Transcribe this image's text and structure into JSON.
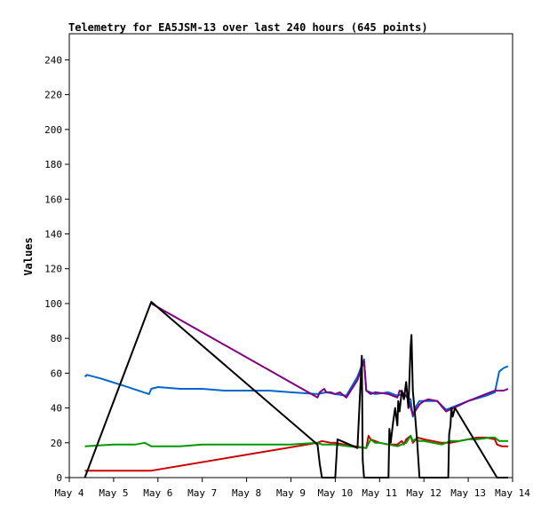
{
  "chart_data": {
    "type": "line",
    "title": "Telemetry for EA5JSM-13 over last 240 hours (645 points)",
    "ylabel": "Values",
    "xlabel": "",
    "xlim": [
      0,
      10
    ],
    "ylim": [
      0,
      255
    ],
    "x_ticks": [
      {
        "x": 0,
        "label": "May 4"
      },
      {
        "x": 1,
        "label": "May 5"
      },
      {
        "x": 2,
        "label": "May 6"
      },
      {
        "x": 3,
        "label": "May 7"
      },
      {
        "x": 4,
        "label": "May 8"
      },
      {
        "x": 5,
        "label": "May 9"
      },
      {
        "x": 6,
        "label": "May 10"
      },
      {
        "x": 7,
        "label": "May 11"
      },
      {
        "x": 8,
        "label": "May 12"
      },
      {
        "x": 9,
        "label": "May 13"
      },
      {
        "x": 10,
        "label": "May 14"
      }
    ],
    "y_ticks": [
      0,
      20,
      40,
      60,
      80,
      100,
      120,
      140,
      160,
      180,
      200,
      220,
      240
    ],
    "grid": false,
    "legend": "none",
    "series": [
      {
        "color": "#0066cc",
        "points": [
          [
            0.35,
            58
          ],
          [
            0.4,
            59
          ],
          [
            0.7,
            57
          ],
          [
            1.2,
            53
          ],
          [
            1.8,
            48
          ],
          [
            1.85,
            51
          ],
          [
            2.0,
            52
          ],
          [
            2.5,
            51
          ],
          [
            3.0,
            51
          ],
          [
            3.5,
            50
          ],
          [
            4.0,
            50
          ],
          [
            4.5,
            50
          ],
          [
            5.0,
            49
          ],
          [
            5.6,
            48
          ],
          [
            5.8,
            49
          ],
          [
            6.0,
            48
          ],
          [
            6.25,
            47
          ],
          [
            6.5,
            58
          ],
          [
            6.65,
            68
          ],
          [
            6.7,
            50
          ],
          [
            6.9,
            48
          ],
          [
            7.2,
            49
          ],
          [
            7.4,
            47
          ],
          [
            7.5,
            48
          ],
          [
            7.7,
            45
          ],
          [
            7.75,
            35
          ],
          [
            7.8,
            40
          ],
          [
            7.9,
            44
          ],
          [
            8.1,
            44
          ],
          [
            8.3,
            44
          ],
          [
            8.5,
            39
          ],
          [
            9.0,
            44
          ],
          [
            9.4,
            47
          ],
          [
            9.6,
            49
          ],
          [
            9.65,
            55
          ],
          [
            9.7,
            61
          ],
          [
            9.8,
            63
          ],
          [
            9.9,
            64
          ]
        ]
      },
      {
        "color": "#800080",
        "points": [
          [
            1.85,
            100
          ],
          [
            5.6,
            46
          ],
          [
            5.65,
            49
          ],
          [
            5.75,
            51
          ],
          [
            5.8,
            49
          ],
          [
            5.9,
            49
          ],
          [
            6.0,
            48
          ],
          [
            6.1,
            49
          ],
          [
            6.25,
            46
          ],
          [
            6.5,
            56
          ],
          [
            6.65,
            67
          ],
          [
            6.7,
            50
          ],
          [
            6.8,
            48
          ],
          [
            6.9,
            49
          ],
          [
            7.2,
            48
          ],
          [
            7.4,
            46
          ],
          [
            7.45,
            50
          ],
          [
            7.6,
            47
          ],
          [
            7.65,
            45
          ],
          [
            7.75,
            36
          ],
          [
            7.8,
            38
          ],
          [
            7.85,
            40
          ],
          [
            7.9,
            42
          ],
          [
            8.0,
            44
          ],
          [
            8.1,
            45
          ],
          [
            8.3,
            44
          ],
          [
            8.4,
            41
          ],
          [
            8.5,
            38
          ],
          [
            9.0,
            44
          ],
          [
            9.5,
            49
          ],
          [
            9.6,
            50
          ],
          [
            9.8,
            50
          ],
          [
            9.9,
            51
          ]
        ]
      },
      {
        "color": "#cc0000",
        "points": [
          [
            0.35,
            4
          ],
          [
            1.85,
            4
          ],
          [
            5.6,
            20
          ],
          [
            5.7,
            21
          ],
          [
            5.9,
            20
          ],
          [
            6.0,
            20
          ],
          [
            6.2,
            19
          ],
          [
            6.7,
            17
          ],
          [
            6.75,
            24
          ],
          [
            6.8,
            22
          ],
          [
            6.9,
            21
          ],
          [
            7.0,
            20
          ],
          [
            7.2,
            19
          ],
          [
            7.4,
            19
          ],
          [
            7.5,
            21
          ],
          [
            7.55,
            19
          ],
          [
            7.6,
            22
          ],
          [
            7.7,
            24
          ],
          [
            7.75,
            20
          ],
          [
            7.85,
            23
          ],
          [
            8.0,
            22
          ],
          [
            8.2,
            21
          ],
          [
            8.4,
            20
          ],
          [
            8.6,
            20
          ],
          [
            8.8,
            21
          ],
          [
            9.0,
            22
          ],
          [
            9.2,
            23
          ],
          [
            9.4,
            23
          ],
          [
            9.6,
            22
          ],
          [
            9.65,
            19
          ],
          [
            9.75,
            18
          ],
          [
            9.9,
            18
          ]
        ]
      },
      {
        "color": "#009900",
        "points": [
          [
            0.35,
            18
          ],
          [
            1.0,
            19
          ],
          [
            1.5,
            19
          ],
          [
            1.7,
            20
          ],
          [
            1.85,
            18
          ],
          [
            2.5,
            18
          ],
          [
            3.0,
            19
          ],
          [
            4.0,
            19
          ],
          [
            5.0,
            19
          ],
          [
            5.6,
            20
          ],
          [
            5.7,
            19
          ],
          [
            5.8,
            19
          ],
          [
            6.0,
            19
          ],
          [
            6.3,
            18
          ],
          [
            6.7,
            17
          ],
          [
            6.8,
            22
          ],
          [
            6.9,
            20
          ],
          [
            7.0,
            20
          ],
          [
            7.2,
            19
          ],
          [
            7.4,
            18
          ],
          [
            7.6,
            20
          ],
          [
            7.7,
            24
          ],
          [
            7.75,
            21
          ],
          [
            7.8,
            22
          ],
          [
            7.9,
            21
          ],
          [
            8.0,
            21
          ],
          [
            8.2,
            20
          ],
          [
            8.4,
            19
          ],
          [
            8.6,
            21
          ],
          [
            8.8,
            21
          ],
          [
            9.0,
            22
          ],
          [
            9.2,
            22
          ],
          [
            9.5,
            23
          ],
          [
            9.6,
            23
          ],
          [
            9.7,
            21
          ],
          [
            9.9,
            21
          ]
        ]
      },
      {
        "color": "#000000",
        "points": [
          [
            0.35,
            0
          ],
          [
            1.85,
            101
          ],
          [
            5.6,
            19
          ],
          [
            5.65,
            8
          ],
          [
            5.7,
            0
          ],
          [
            6.0,
            0
          ],
          [
            6.05,
            22
          ],
          [
            6.5,
            17
          ],
          [
            6.6,
            70
          ],
          [
            6.62,
            10
          ],
          [
            6.65,
            0
          ],
          [
            6.7,
            0
          ],
          [
            7.2,
            0
          ],
          [
            7.22,
            28
          ],
          [
            7.25,
            20
          ],
          [
            7.3,
            31
          ],
          [
            7.35,
            40
          ],
          [
            7.4,
            30
          ],
          [
            7.42,
            44
          ],
          [
            7.45,
            38
          ],
          [
            7.5,
            50
          ],
          [
            7.55,
            45
          ],
          [
            7.6,
            55
          ],
          [
            7.65,
            40
          ],
          [
            7.7,
            75
          ],
          [
            7.72,
            82
          ],
          [
            7.75,
            50
          ],
          [
            7.8,
            36
          ],
          [
            7.85,
            20
          ],
          [
            7.9,
            0
          ],
          [
            8.55,
            0
          ],
          [
            8.57,
            25
          ],
          [
            8.6,
            30
          ],
          [
            8.62,
            40
          ],
          [
            8.65,
            35
          ],
          [
            8.7,
            40
          ],
          [
            8.75,
            38
          ],
          [
            9.65,
            0
          ],
          [
            9.9,
            0
          ]
        ]
      }
    ]
  }
}
